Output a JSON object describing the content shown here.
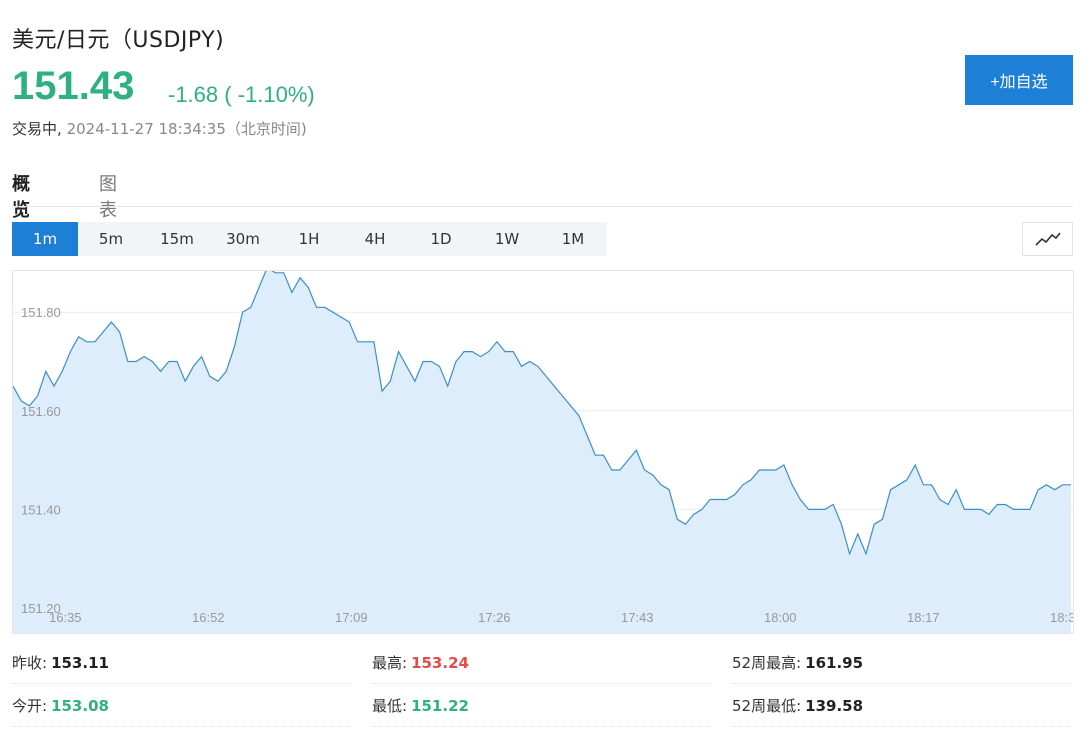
{
  "header": {
    "title": "美元/日元（USDJPY)",
    "price": "151.43",
    "change": "-1.68 ( -1.10%)",
    "status": "交易中,",
    "timestamp": "2024-11-27 18:34:35（北京时间)",
    "add_button_label": "+加自选"
  },
  "tabs": [
    {
      "label": "概览",
      "active": true
    },
    {
      "label": "图表",
      "active": false
    }
  ],
  "periods": [
    {
      "label": "1m",
      "active": true
    },
    {
      "label": "5m",
      "active": false
    },
    {
      "label": "15m",
      "active": false
    },
    {
      "label": "30m",
      "active": false
    },
    {
      "label": "1H",
      "active": false
    },
    {
      "label": "4H",
      "active": false
    },
    {
      "label": "1D",
      "active": false
    },
    {
      "label": "1W",
      "active": false
    },
    {
      "label": "1M",
      "active": false
    }
  ],
  "chart_type_icon": "line-chart-icon",
  "colors": {
    "up_green": "#2eb082",
    "down_red": "#e84a4a",
    "accent_blue": "#1e7fd6",
    "line": "#3a8fc8",
    "area_fill": "#deedfb"
  },
  "stats": [
    {
      "label": "昨收:",
      "value": "153.11",
      "tone": "normal"
    },
    {
      "label": "最高:",
      "value": "153.24",
      "tone": "red"
    },
    {
      "label": "52周最高:",
      "value": "161.95",
      "tone": "normal"
    },
    {
      "label": "今开:",
      "value": "153.08",
      "tone": "green"
    },
    {
      "label": "最低:",
      "value": "151.22",
      "tone": "green"
    },
    {
      "label": "52周最低:",
      "value": "139.58",
      "tone": "normal"
    }
  ],
  "chart_data": {
    "type": "area",
    "title": "",
    "xlabel": "",
    "ylabel": "",
    "ylim": [
      151.2,
      151.95
    ],
    "y_ticks": [
      "151.80",
      "151.60",
      "151.40",
      "151.20"
    ],
    "x_ticks": [
      "16:35",
      "16:52",
      "17:09",
      "17:26",
      "17:43",
      "18:00",
      "18:17",
      "18:3"
    ],
    "grid": true,
    "series": [
      {
        "values": [
          151.65,
          151.62,
          151.61,
          151.63,
          151.68,
          151.65,
          151.68,
          151.72,
          151.75,
          151.74,
          151.74,
          151.76,
          151.78,
          151.76,
          151.7,
          151.7,
          151.71,
          151.7,
          151.68,
          151.7,
          151.7,
          151.66,
          151.69,
          151.71,
          151.67,
          151.66,
          151.68,
          151.73,
          151.8,
          151.81,
          151.85,
          151.89,
          151.88,
          151.88,
          151.84,
          151.87,
          151.85,
          151.81,
          151.81,
          151.8,
          151.79,
          151.78,
          151.74,
          151.74,
          151.74,
          151.64,
          151.66,
          151.72,
          151.69,
          151.66,
          151.7,
          151.7,
          151.69,
          151.65,
          151.7,
          151.72,
          151.72,
          151.71,
          151.72,
          151.74,
          151.72,
          151.72,
          151.69,
          151.7,
          151.69,
          151.67,
          151.65,
          151.63,
          151.61,
          151.59,
          151.55,
          151.51,
          151.51,
          151.48,
          151.48,
          151.5,
          151.52,
          151.48,
          151.47,
          151.45,
          151.44,
          151.38,
          151.37,
          151.39,
          151.4,
          151.42,
          151.42,
          151.42,
          151.43,
          151.45,
          151.46,
          151.48,
          151.48,
          151.48,
          151.49,
          151.45,
          151.42,
          151.4,
          151.4,
          151.4,
          151.41,
          151.37,
          151.31,
          151.35,
          151.31,
          151.37,
          151.38,
          151.44,
          151.45,
          151.46,
          151.49,
          151.45,
          151.45,
          151.42,
          151.41,
          151.44,
          151.4,
          151.4,
          151.4,
          151.39,
          151.41,
          151.41,
          151.4,
          151.4,
          151.4,
          151.44,
          151.45,
          151.44,
          151.45,
          151.45
        ]
      }
    ]
  }
}
